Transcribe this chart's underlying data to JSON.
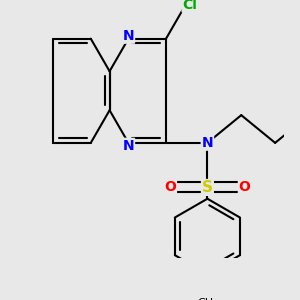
{
  "background_color": "#e8e8e8",
  "line_color": "#000000",
  "bond_width": 1.5,
  "atom_colors": {
    "N": "#0000ff",
    "Cl": "#00aa00",
    "S": "#cccc00",
    "O": "#ff0000",
    "C": "#000000"
  },
  "font_size": 10
}
